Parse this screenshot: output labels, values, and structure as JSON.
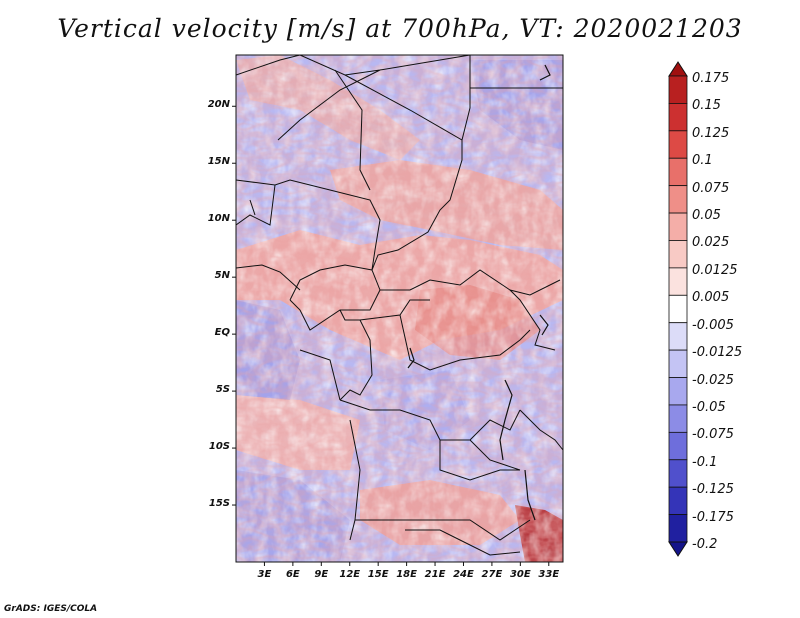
{
  "title": "Vertical velocity [m/s] at 700hPa, VT: 2020021203",
  "credit": "GrADS: IGES/COLA",
  "map": {
    "lat_labels": [
      "20N",
      "15N",
      "10N",
      "5N",
      "EQ",
      "5S",
      "10S",
      "15S"
    ],
    "lat_values": [
      20,
      15,
      10,
      5,
      0,
      -5,
      -10,
      -15
    ],
    "lon_labels": [
      "3E",
      "6E",
      "9E",
      "12E",
      "15E",
      "18E",
      "21E",
      "24E",
      "27E",
      "30E",
      "33E"
    ],
    "lon_values": [
      3,
      6,
      9,
      12,
      15,
      18,
      21,
      24,
      27,
      30,
      33
    ],
    "lon_range": [
      0,
      34.5
    ],
    "lat_range": [
      -20,
      24.5
    ]
  },
  "colorbar": {
    "levels": [
      "0.175",
      "0.15",
      "0.125",
      "0.1",
      "0.075",
      "0.05",
      "0.025",
      "0.0125",
      "0.005",
      "-0.005",
      "-0.0125",
      "-0.025",
      "-0.05",
      "-0.075",
      "-0.1",
      "-0.125",
      "-0.175",
      "-0.2"
    ],
    "colors": [
      "#a01010",
      "#b82020",
      "#cc3030",
      "#dd4a45",
      "#e8706a",
      "#ef8f88",
      "#f4aea8",
      "#f8cac5",
      "#fbe2df",
      "#ffffff",
      "#dcdcf8",
      "#c4c4f4",
      "#a8a8ee",
      "#8c8ce6",
      "#6e6edc",
      "#5050cc",
      "#3434b8",
      "#2020a0",
      "#14148a"
    ]
  }
}
